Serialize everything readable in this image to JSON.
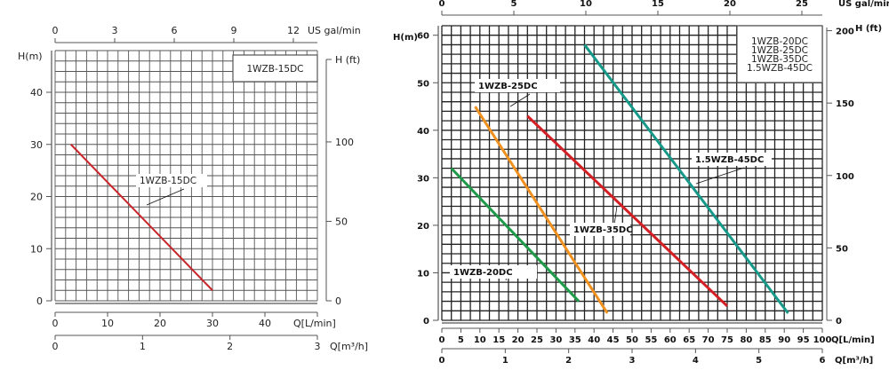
{
  "chart_data": [
    {
      "type": "line",
      "title": "1WZB-15DC",
      "legend": [
        "1WZB-15DC"
      ],
      "legend_position": "top-right",
      "xlabel": "Q[L/min]",
      "xlim": [
        0,
        50
      ],
      "xticks": [
        0,
        10,
        20,
        30,
        40
      ],
      "ylabel": "H(m)",
      "ylim": [
        0,
        48
      ],
      "yticks": [
        0,
        10,
        20,
        30,
        40
      ],
      "grid": true,
      "grid_x_step": 2,
      "grid_y_step": 2,
      "secondary_x_top": {
        "label": "US gal/min",
        "ticks": [
          0,
          3,
          6,
          9,
          12
        ]
      },
      "secondary_x_bottom": {
        "label": "Q[m³/h]",
        "ticks": [
          0,
          1,
          2,
          3
        ]
      },
      "secondary_y_right": {
        "label": "H (ft)",
        "ticks": [
          0,
          50,
          100
        ]
      },
      "series": [
        {
          "name": "1WZB-15DC",
          "color": "#c8262a",
          "x": [
            3,
            30
          ],
          "y": [
            30,
            2
          ]
        }
      ]
    },
    {
      "type": "line",
      "title": "1WZB-20DC / 1WZB-25DC / 1WZB-35DC / 1.5WZB-45DC",
      "legend": [
        "1WZB-20DC",
        "1WZB-25DC",
        "1WZB-35DC",
        "1.5WZB-45DC"
      ],
      "legend_position": "top-right",
      "xlabel": "Q[L/min]",
      "xlim": [
        0,
        100
      ],
      "xticks": [
        0,
        5,
        10,
        15,
        20,
        25,
        30,
        35,
        40,
        45,
        50,
        55,
        60,
        65,
        70,
        75,
        80,
        85,
        90,
        95,
        100
      ],
      "ylabel": "H(m)",
      "ylim": [
        0,
        62
      ],
      "yticks": [
        0,
        10,
        20,
        30,
        40,
        50,
        60
      ],
      "grid": true,
      "grid_x_step": 2.5,
      "grid_y_step": 2,
      "secondary_x_top": {
        "label": "US gal/min",
        "ticks": [
          0,
          5,
          10,
          15,
          20,
          25
        ]
      },
      "secondary_x_bottom": {
        "label": "Q[m³/h]",
        "ticks": [
          0,
          1,
          2,
          3,
          4,
          5,
          6
        ]
      },
      "secondary_y_right": {
        "label": "H (ft)",
        "ticks": [
          0,
          50,
          100,
          150,
          200
        ]
      },
      "series": [
        {
          "name": "1WZB-20DC",
          "color": "#1e9a48",
          "x": [
            2.5,
            36
          ],
          "y": [
            32,
            4
          ]
        },
        {
          "name": "1WZB-25DC",
          "color": "#f0901e",
          "x": [
            8.75,
            43.5
          ],
          "y": [
            45,
            1.5
          ]
        },
        {
          "name": "1WZB-35DC",
          "color": "#d42024",
          "x": [
            22.5,
            75
          ],
          "y": [
            43,
            3
          ]
        },
        {
          "name": "1.5WZB-45DC",
          "color": "#17998a",
          "x": [
            37.5,
            91
          ],
          "y": [
            58,
            1.5
          ]
        }
      ]
    }
  ]
}
